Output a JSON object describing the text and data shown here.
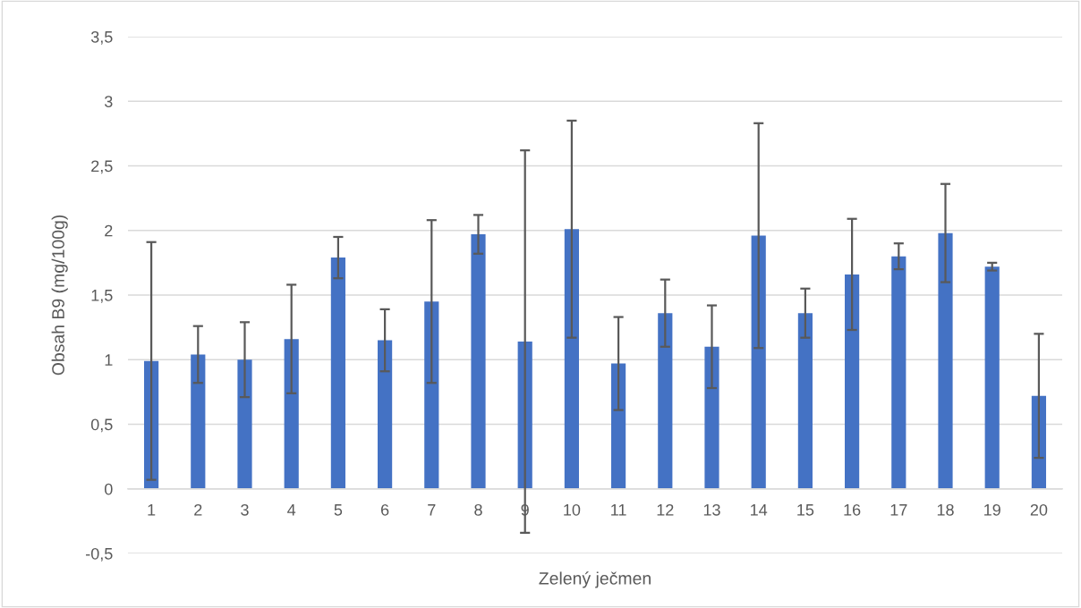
{
  "chart_data": {
    "type": "bar",
    "xlabel": "Zelený ječmen",
    "ylabel": "Obsah B9 (mg/100g)",
    "categories": [
      "1",
      "2",
      "3",
      "4",
      "5",
      "6",
      "7",
      "8",
      "9",
      "10",
      "11",
      "12",
      "13",
      "14",
      "15",
      "16",
      "17",
      "18",
      "19",
      "20"
    ],
    "values": [
      0.99,
      1.04,
      1.0,
      1.16,
      1.79,
      1.15,
      1.45,
      1.97,
      1.14,
      2.01,
      0.97,
      1.36,
      1.1,
      1.96,
      1.36,
      1.66,
      1.8,
      1.98,
      1.72,
      0.72
    ],
    "errors": [
      0.92,
      0.22,
      0.29,
      0.42,
      0.16,
      0.24,
      0.63,
      0.15,
      1.48,
      0.84,
      0.36,
      0.26,
      0.32,
      0.87,
      0.19,
      0.43,
      0.1,
      0.38,
      0.03,
      0.48
    ],
    "color": "#4472c4",
    "ylim": [
      -0.5,
      3.5
    ],
    "yticks": [
      {
        "value": -0.5,
        "label": "-0,5"
      },
      0,
      {
        "value": 0.5,
        "label": "0,5"
      },
      1,
      {
        "value": 1.5,
        "label": "1,5"
      },
      2,
      {
        "value": 2.5,
        "label": "2,5"
      },
      3,
      {
        "value": 3.5,
        "label": "3,5"
      }
    ],
    "grid": "y"
  }
}
